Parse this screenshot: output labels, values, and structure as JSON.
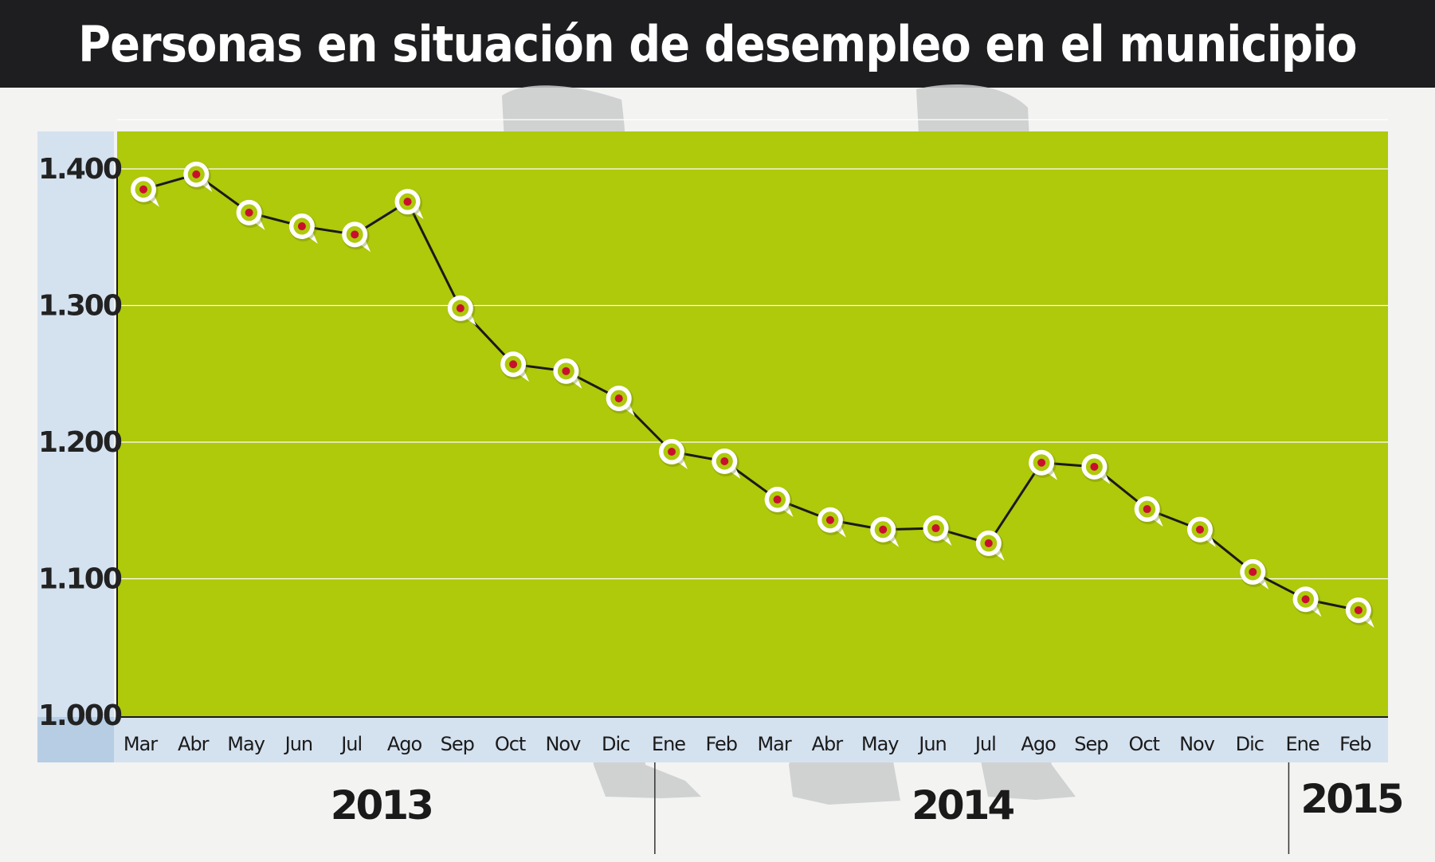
{
  "title": "Personas en situación de desempleo en el municipio",
  "colors": {
    "plot_bg": "#afc90b",
    "title_bg": "#1e1d1f",
    "axis_band": "#d4e1ef",
    "axis_band_dark": "#b6cde4",
    "line": "#1a1a1a",
    "marker_dot": "#c8102e"
  },
  "chart_data": {
    "type": "line",
    "title": "Personas en situación de desempleo en el municipio",
    "xlabel": "",
    "ylabel": "",
    "ylim": [
      1000,
      1436
    ],
    "y_ticks": [
      1000,
      1100,
      1200,
      1300,
      1400
    ],
    "y_tick_labels": [
      "1.000",
      "1.100",
      "1.200",
      "1.300",
      "1.400"
    ],
    "categories": [
      "Mar",
      "Abr",
      "May",
      "Jun",
      "Jul",
      "Ago",
      "Sep",
      "Oct",
      "Nov",
      "Dic",
      "Ene",
      "Feb",
      "Mar",
      "Abr",
      "May",
      "Jun",
      "Jul",
      "Ago",
      "Sep",
      "Oct",
      "Nov",
      "Dic",
      "Ene",
      "Feb"
    ],
    "values": [
      1385,
      1396,
      1368,
      1358,
      1352,
      1376,
      1298,
      1257,
      1252,
      1232,
      1193,
      1186,
      1158,
      1143,
      1136,
      1137,
      1126,
      1185,
      1182,
      1151,
      1136,
      1105,
      1085,
      1077
    ],
    "year_groups": [
      {
        "label": "2013",
        "start": 0,
        "end": 9
      },
      {
        "label": "2014",
        "start": 10,
        "end": 21
      },
      {
        "label": "2015",
        "start": 22,
        "end": 23
      }
    ],
    "grid": true,
    "legend": "none"
  }
}
